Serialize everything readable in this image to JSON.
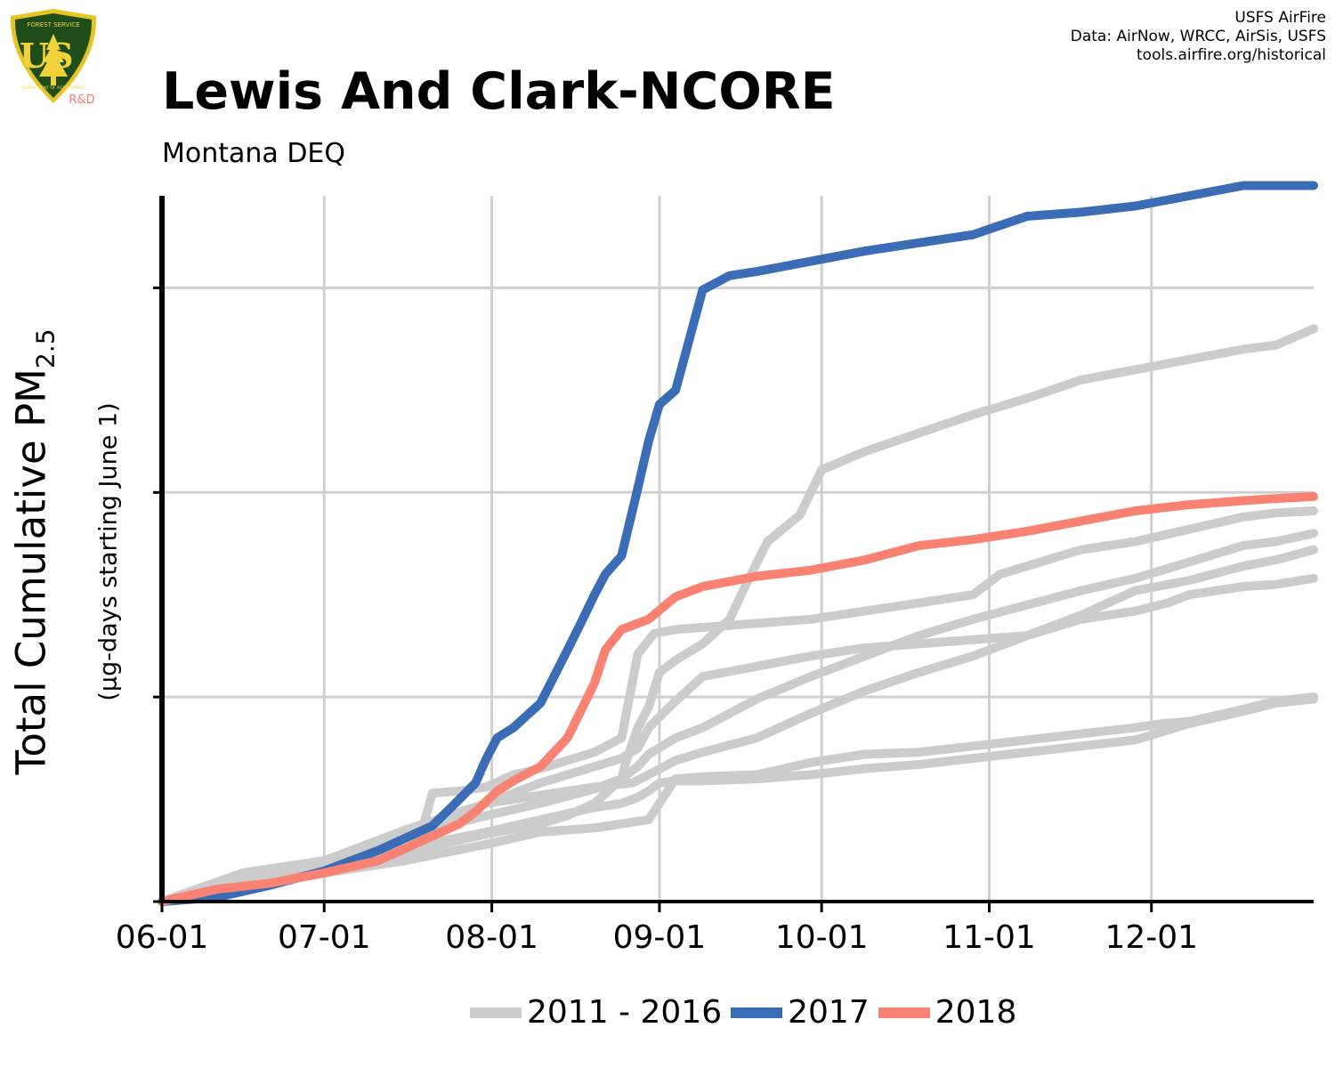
{
  "header": {
    "title": "Lewis And Clark-NCORE",
    "subtitle": "Montana DEQ",
    "credits": [
      "USFS AirFire",
      "Data: AirNow, WRCC, AirSis, USFS",
      "tools.airfire.org/historical"
    ]
  },
  "logo": {
    "name": "usfs-shield-logo",
    "text_top": "FOREST SERVICE",
    "text_main": "US",
    "text_bottom": "DEPARTMENT OF AGRICULTURE",
    "badge": "R&D",
    "colors": {
      "shield": "#1f4d1a",
      "rim": "#e8c420",
      "text": "#f2d23a",
      "badge": "#f47c6c"
    }
  },
  "chart_data": {
    "type": "line",
    "title": "Lewis And Clark-NCORE",
    "subtitle": "Montana DEQ",
    "ylabel_main": "Total Cumulative PM",
    "ylabel_sub_script": "2.5",
    "ylabel_secondary": "(μg-days starting June 1)",
    "xlabel": "",
    "x_tick_labels": [
      "06-01",
      "07-01",
      "08-01",
      "09-01",
      "10-01",
      "11-01",
      "12-01"
    ],
    "x_tick_days": [
      0,
      30,
      61,
      92,
      122,
      153,
      183
    ],
    "xlim": [
      0,
      213
    ],
    "ylim": [
      0,
      3.45
    ],
    "y_ticks": [
      0,
      1,
      2,
      3
    ],
    "y_tick_labels_visible": false,
    "grid": true,
    "legend_position": "bottom",
    "legend": [
      {
        "label": "2011 - 2016",
        "color": "#cccccc"
      },
      {
        "label": "2017",
        "color": "#3a6db5"
      },
      {
        "label": "2018",
        "color": "#f98272"
      }
    ],
    "series": [
      {
        "group": "2011 - 2016",
        "color": "#cccccc",
        "x": [
          0,
          15,
          30,
          45,
          50,
          55,
          60,
          70,
          80,
          87,
          90,
          95,
          100,
          110,
          120,
          130,
          140,
          150,
          160,
          170,
          180,
          190,
          200,
          206,
          213
        ],
        "y": [
          0,
          0.12,
          0.2,
          0.32,
          0.39,
          0.42,
          0.48,
          0.52,
          0.56,
          0.58,
          0.62,
          0.69,
          0.73,
          0.8,
          0.92,
          1.03,
          1.12,
          1.2,
          1.3,
          1.4,
          1.52,
          1.57,
          1.64,
          1.67,
          1.72
        ]
      },
      {
        "group": "2011 - 2016",
        "color": "#cccccc",
        "x": [
          0,
          15,
          30,
          45,
          48,
          50,
          55,
          60,
          65,
          70,
          80,
          85,
          88,
          91,
          95,
          100,
          110,
          120,
          130,
          140,
          150,
          155,
          160,
          170,
          180,
          190,
          200,
          206,
          213
        ],
        "y": [
          0,
          0.14,
          0.2,
          0.31,
          0.34,
          0.53,
          0.54,
          0.56,
          0.62,
          0.65,
          0.73,
          0.8,
          1.21,
          1.31,
          1.33,
          1.34,
          1.36,
          1.38,
          1.42,
          1.46,
          1.5,
          1.6,
          1.64,
          1.72,
          1.76,
          1.82,
          1.88,
          1.9,
          1.91
        ]
      },
      {
        "group": "2011 - 2016",
        "color": "#cccccc",
        "x": [
          0,
          15,
          30,
          45,
          60,
          70,
          80,
          85,
          86,
          88,
          90,
          92,
          95,
          100,
          105,
          108,
          112,
          118,
          122,
          130,
          140,
          150,
          160,
          170,
          180,
          190,
          200,
          206,
          213
        ],
        "y": [
          0,
          0.13,
          0.2,
          0.32,
          0.42,
          0.48,
          0.55,
          0.6,
          0.7,
          0.85,
          0.95,
          1.12,
          1.18,
          1.26,
          1.38,
          1.55,
          1.76,
          1.89,
          2.11,
          2.2,
          2.29,
          2.38,
          2.46,
          2.55,
          2.6,
          2.65,
          2.7,
          2.72,
          2.8
        ]
      },
      {
        "group": "2011 - 2016",
        "color": "#cccccc",
        "x": [
          0,
          15,
          30,
          45,
          60,
          70,
          75,
          80,
          85,
          88,
          90,
          92,
          95,
          100,
          110,
          120,
          130,
          140,
          150,
          160,
          170,
          180,
          190,
          200,
          206,
          213
        ],
        "y": [
          0,
          0.11,
          0.18,
          0.26,
          0.34,
          0.4,
          0.43,
          0.46,
          0.48,
          0.51,
          0.54,
          0.58,
          0.59,
          0.59,
          0.6,
          0.62,
          0.65,
          0.67,
          0.7,
          0.73,
          0.76,
          0.79,
          0.87,
          0.93,
          0.97,
          0.99
        ]
      },
      {
        "group": "2011 - 2016",
        "color": "#cccccc",
        "x": [
          0,
          15,
          30,
          45,
          60,
          70,
          75,
          80,
          85,
          88,
          90,
          95,
          100,
          110,
          120,
          130,
          140,
          150,
          160,
          170,
          180,
          190,
          200,
          206,
          213
        ],
        "y": [
          0,
          0.1,
          0.16,
          0.24,
          0.33,
          0.38,
          0.42,
          0.48,
          0.6,
          0.66,
          0.72,
          0.8,
          0.85,
          0.99,
          1.1,
          1.2,
          1.3,
          1.38,
          1.45,
          1.52,
          1.58,
          1.66,
          1.74,
          1.76,
          1.8
        ]
      },
      {
        "group": "2011 - 2016",
        "color": "#cccccc",
        "x": [
          0,
          15,
          30,
          45,
          60,
          70,
          80,
          85,
          88,
          90,
          95,
          100,
          110,
          120,
          130,
          140,
          150,
          160,
          170,
          180,
          186,
          190,
          200,
          206,
          213
        ],
        "y": [
          0,
          0.14,
          0.2,
          0.35,
          0.48,
          0.58,
          0.66,
          0.7,
          0.75,
          0.85,
          0.98,
          1.1,
          1.15,
          1.2,
          1.24,
          1.26,
          1.28,
          1.3,
          1.38,
          1.42,
          1.46,
          1.5,
          1.54,
          1.55,
          1.58
        ]
      },
      {
        "group": "2011 - 2016",
        "color": "#cccccc",
        "x": [
          0,
          15,
          30,
          45,
          60,
          70,
          80,
          90,
          95,
          100,
          110,
          120,
          130,
          140,
          150,
          160,
          170,
          180,
          185,
          190,
          200,
          206,
          213
        ],
        "y": [
          0,
          0.1,
          0.14,
          0.2,
          0.28,
          0.34,
          0.36,
          0.4,
          0.6,
          0.61,
          0.62,
          0.68,
          0.72,
          0.73,
          0.76,
          0.79,
          0.82,
          0.85,
          0.87,
          0.88,
          0.94,
          0.98,
          1.0
        ]
      },
      {
        "group": "2017",
        "color": "#3a6db5",
        "x": [
          0,
          10,
          20,
          30,
          40,
          50,
          55,
          58,
          60,
          62,
          65,
          70,
          75,
          78,
          80,
          82,
          85,
          88,
          90,
          92,
          95,
          100,
          105,
          110,
          120,
          130,
          140,
          150,
          160,
          170,
          180,
          190,
          200,
          206,
          213
        ],
        "y": [
          0,
          0.02,
          0.08,
          0.15,
          0.25,
          0.37,
          0.5,
          0.58,
          0.7,
          0.8,
          0.85,
          0.97,
          1.23,
          1.39,
          1.5,
          1.6,
          1.69,
          2.02,
          2.25,
          2.43,
          2.5,
          2.99,
          3.06,
          3.08,
          3.13,
          3.18,
          3.22,
          3.26,
          3.35,
          3.37,
          3.4,
          3.45,
          3.5,
          3.55,
          3.6
        ]
      },
      {
        "group": "2018",
        "color": "#f98272",
        "x": [
          0,
          10,
          20,
          30,
          40,
          50,
          55,
          58,
          60,
          62,
          65,
          70,
          75,
          78,
          80,
          82,
          85,
          90,
          95,
          100,
          110,
          120,
          130,
          140,
          150,
          160,
          170,
          180,
          190,
          200,
          206,
          213
        ],
        "y": [
          0,
          0.06,
          0.09,
          0.14,
          0.2,
          0.32,
          0.38,
          0.44,
          0.49,
          0.54,
          0.59,
          0.66,
          0.8,
          0.96,
          1.07,
          1.23,
          1.33,
          1.38,
          1.49,
          1.54,
          1.59,
          1.62,
          1.67,
          1.74,
          1.77,
          1.81,
          1.86,
          1.91,
          1.94,
          1.96,
          1.97,
          1.98
        ]
      }
    ]
  }
}
